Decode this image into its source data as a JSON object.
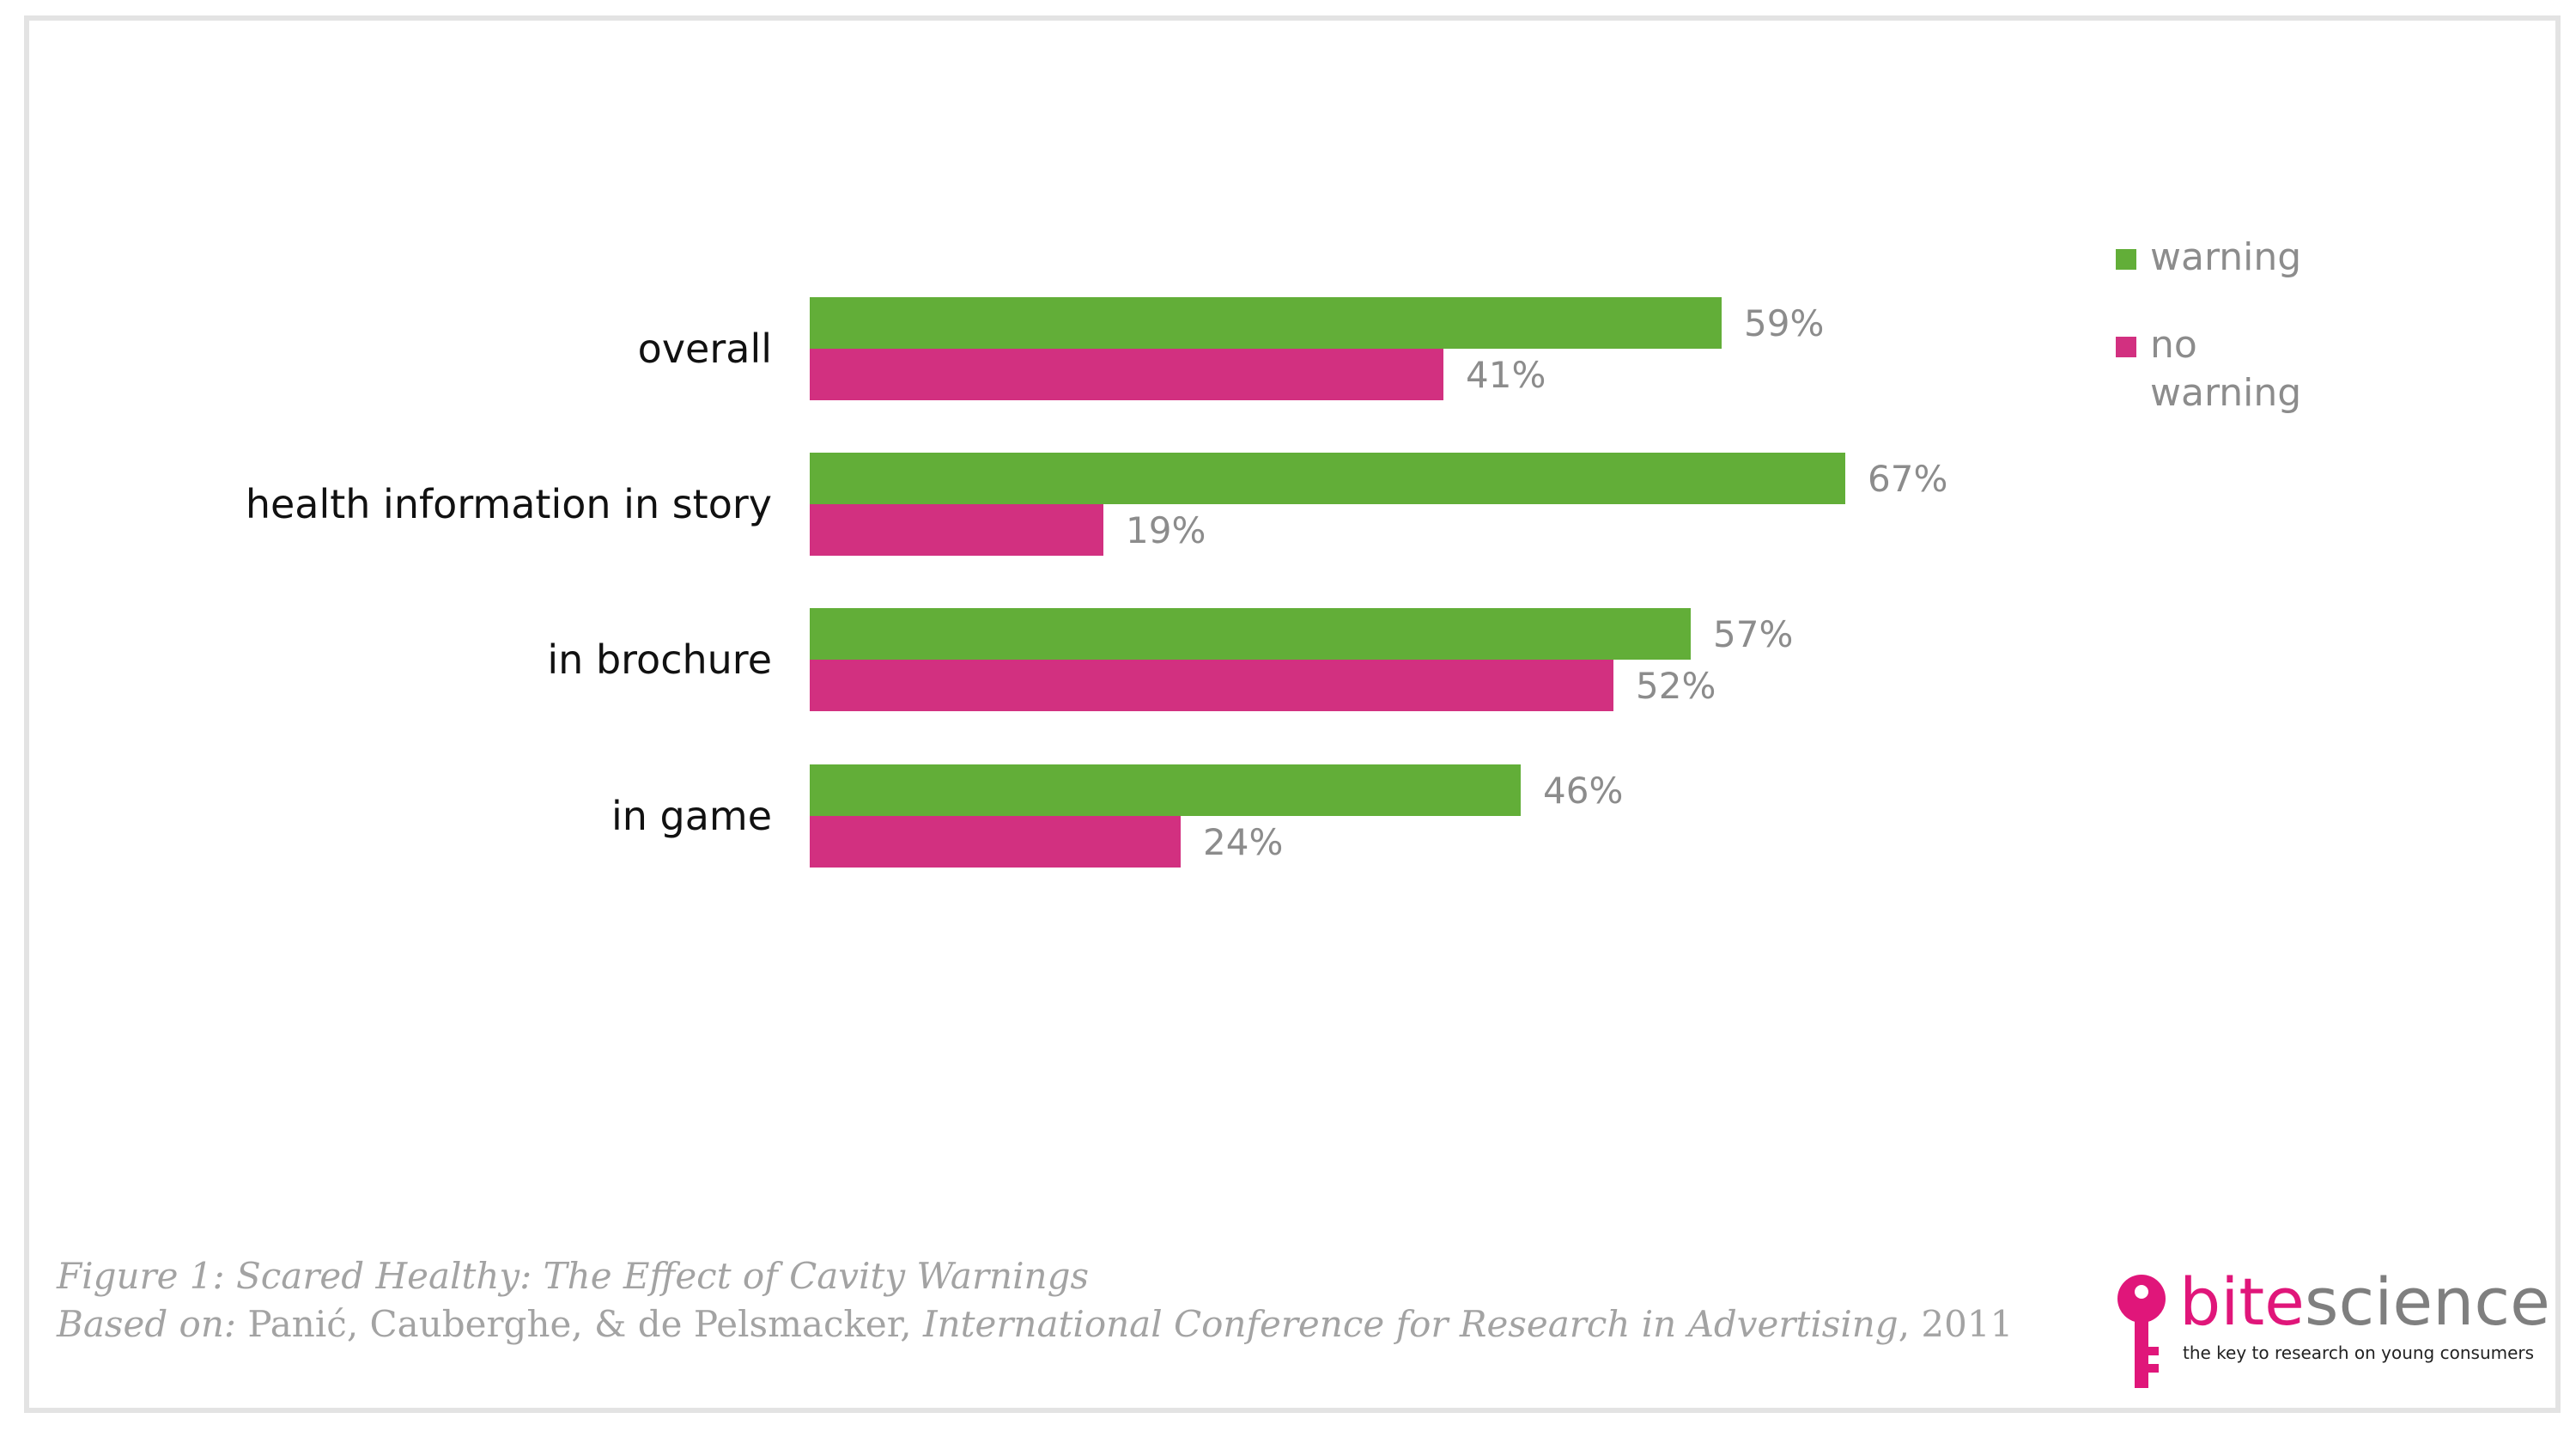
{
  "chart_data": {
    "type": "bar",
    "orientation": "horizontal",
    "categories": [
      "overall",
      "health information in story",
      "in brochure",
      "in game"
    ],
    "series": [
      {
        "name": "warning",
        "values": [
          59,
          67,
          57,
          46
        ],
        "color": "#62ae38"
      },
      {
        "name": "no warning",
        "values": [
          41,
          19,
          52,
          24
        ],
        "color": "#d23080"
      }
    ],
    "value_labels": [
      [
        "59%",
        "67%",
        "57%",
        "46%"
      ],
      [
        "41%",
        "19%",
        "52%",
        "24%"
      ]
    ],
    "xlim": [
      0,
      100
    ],
    "grid": false,
    "legend_position": "right"
  },
  "legend": {
    "warning": "warning",
    "no_warning_line1": "no",
    "no_warning_line2": "warning"
  },
  "caption": {
    "title": "Figure 1: Scared Healthy: The Effect of Cavity Warnings",
    "based_on_label": "Based on:",
    "authors": " Panić, Cauberghe, & de Pelsmacker, ",
    "venue": "International Conference for Research in Advertising",
    "year": ", 2011"
  },
  "logo": {
    "bite": "bite",
    "science": "science",
    "tagline": "the key to research on young consumers"
  },
  "colors": {
    "warning": "#62ae38",
    "no_warning": "#d23080",
    "brand": "#e0167a"
  }
}
